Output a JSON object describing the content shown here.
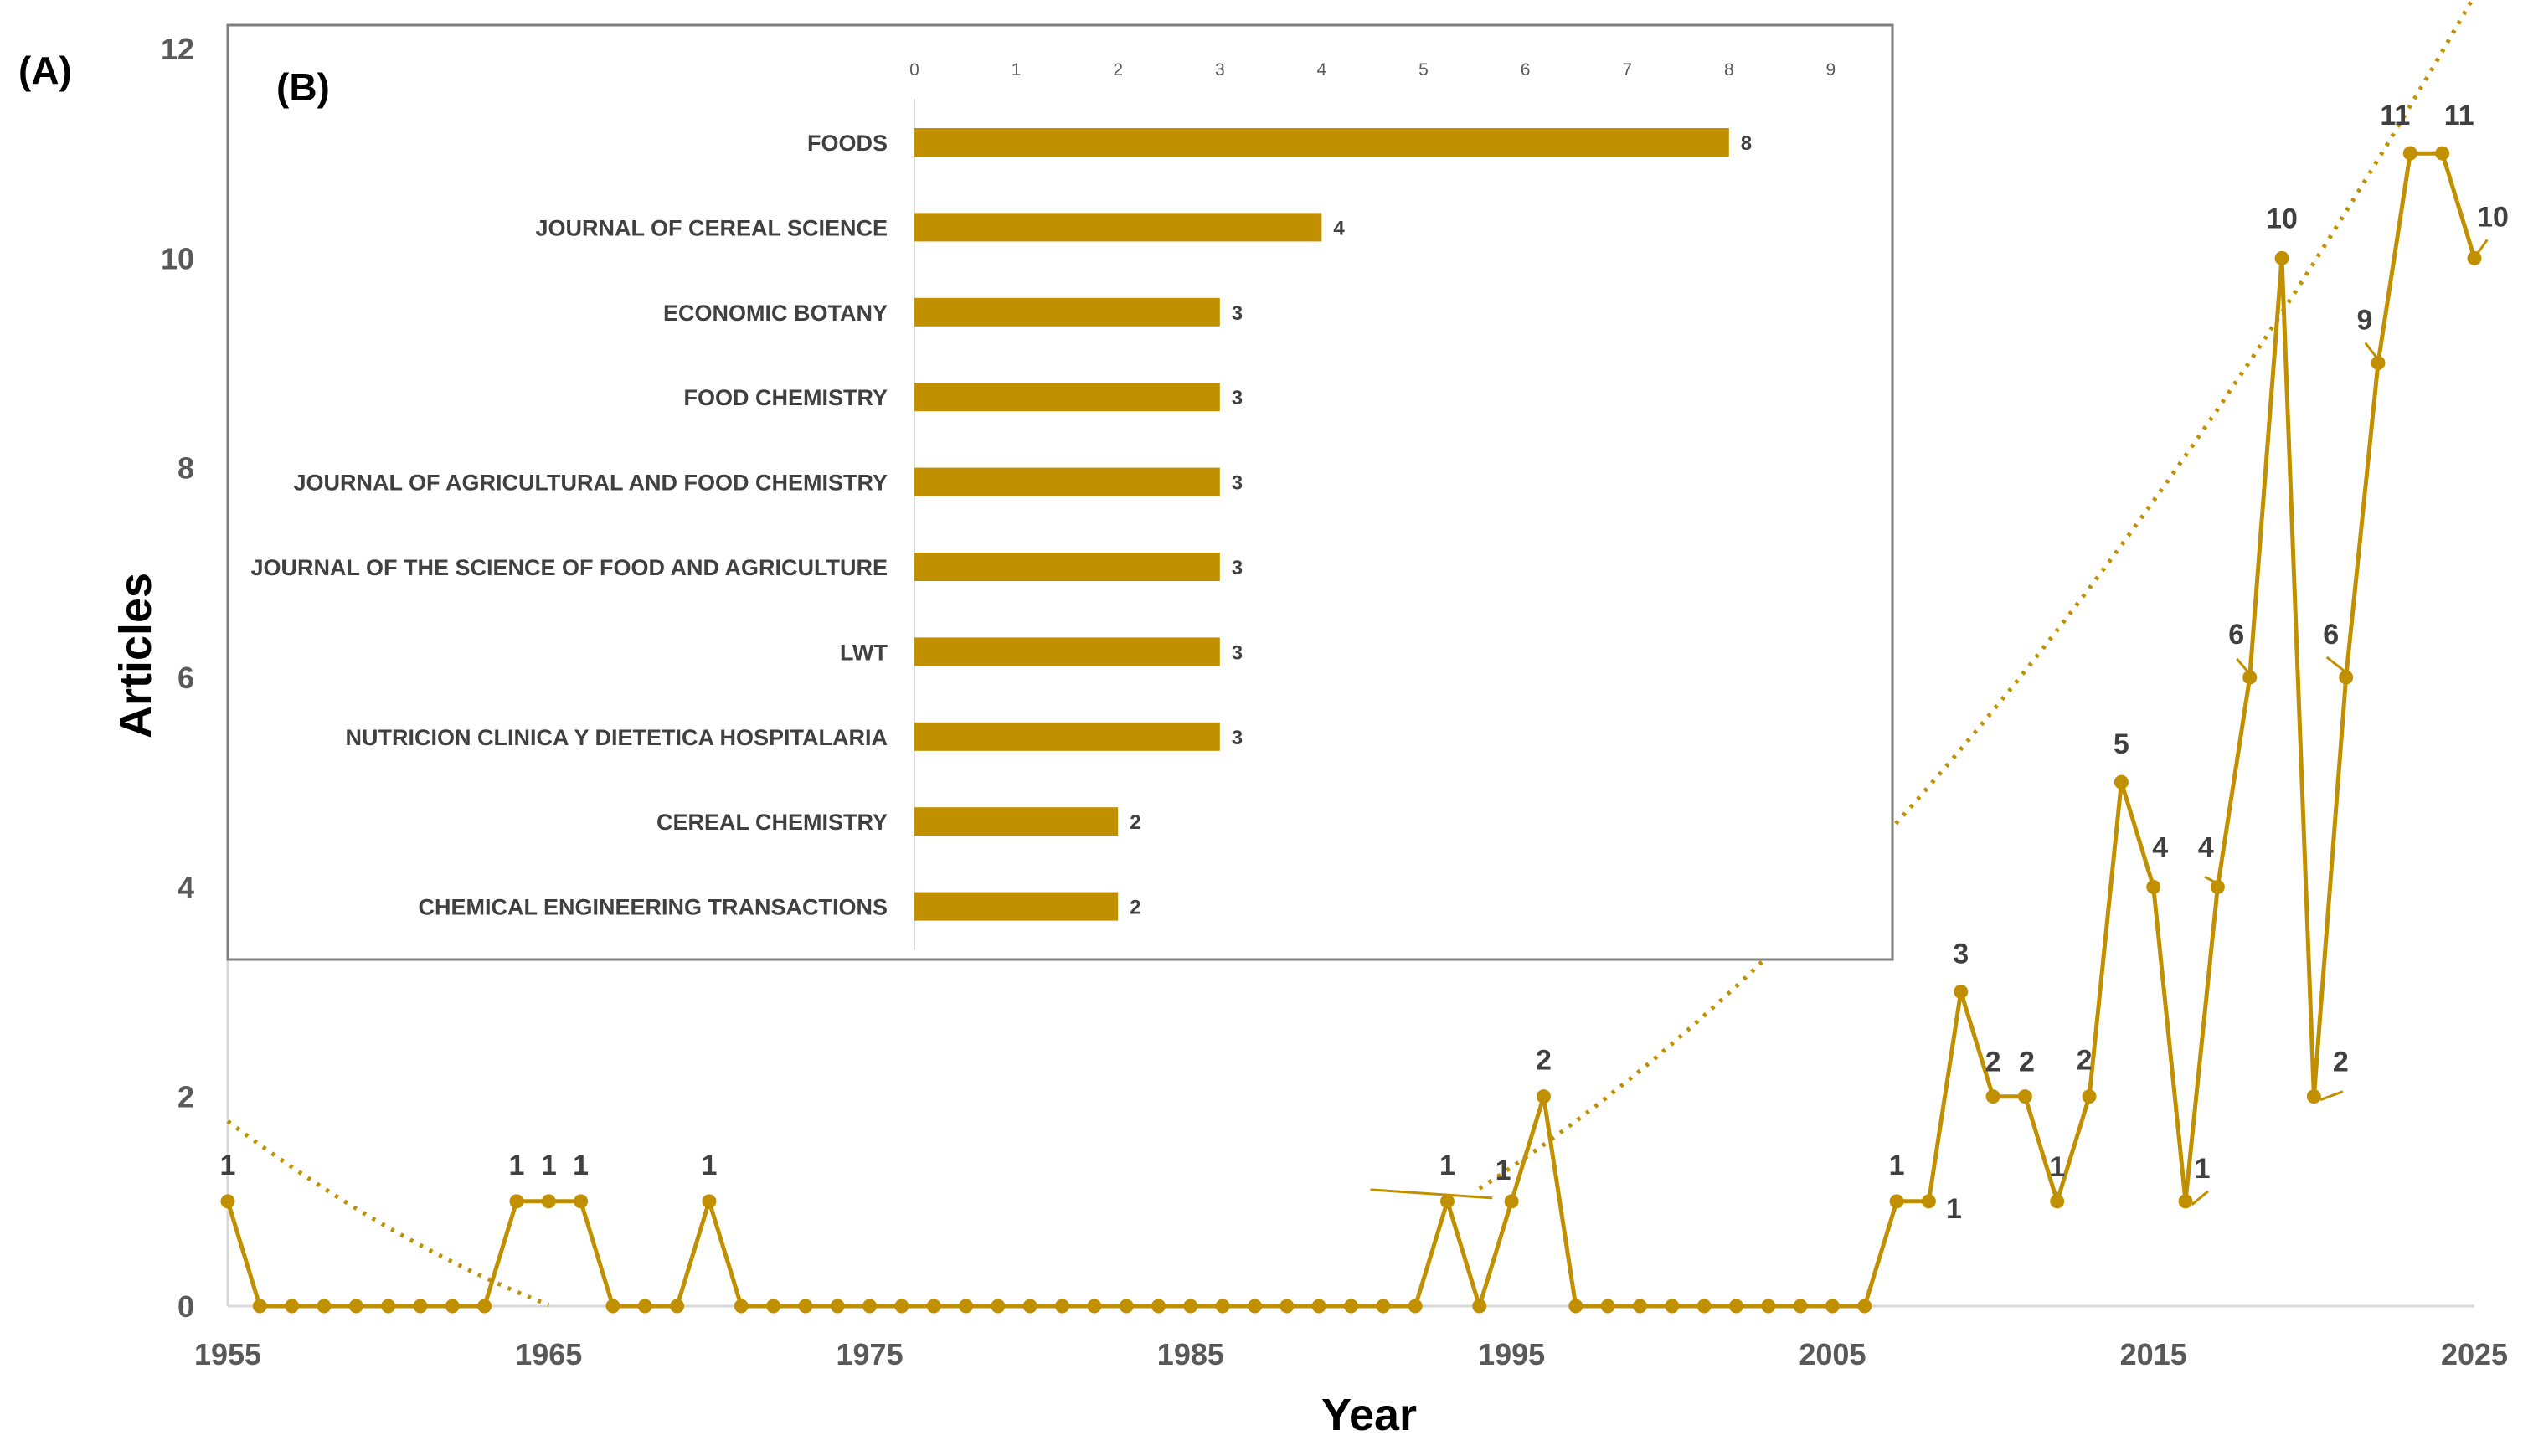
{
  "chart_data": [
    {
      "panel": "(A)",
      "type": "line",
      "xlabel": "Year",
      "ylabel": "Articles",
      "xlim": [
        1955,
        2025
      ],
      "ylim": [
        0,
        12
      ],
      "xticks": [
        1955,
        1965,
        1975,
        1985,
        1995,
        2005,
        2015,
        2025
      ],
      "yticks": [
        0,
        2,
        4,
        6,
        8,
        10,
        12
      ],
      "grid": false,
      "trendline": "polynomial (dotted)",
      "colors": {
        "series": "#c09000",
        "axis": "#d9d9d9"
      },
      "series": [
        {
          "x": [
            1955,
            1956,
            1957,
            1958,
            1959,
            1960,
            1961,
            1962,
            1963,
            1964,
            1965,
            1966,
            1967,
            1968,
            1969,
            1970,
            1971,
            1972,
            1973,
            1974,
            1975,
            1976,
            1977,
            1978,
            1979,
            1980,
            1981,
            1982,
            1983,
            1984,
            1985,
            1986,
            1987,
            1988,
            1989,
            1990,
            1991,
            1992,
            1993,
            1994,
            1995,
            1996,
            1997,
            1998,
            1999,
            2000,
            2001,
            2002,
            2003,
            2004,
            2005,
            2006,
            2007,
            2008,
            2009,
            2010,
            2011,
            2012,
            2013,
            2014,
            2015,
            2016,
            2017,
            2018,
            2019,
            2020,
            2021,
            2022,
            2023,
            2024,
            2025
          ],
          "values": [
            1,
            0,
            0,
            0,
            0,
            0,
            0,
            0,
            0,
            1,
            1,
            1,
            0,
            0,
            0,
            1,
            0,
            0,
            0,
            0,
            0,
            0,
            0,
            0,
            0,
            0,
            0,
            0,
            0,
            0,
            0,
            0,
            0,
            0,
            0,
            0,
            0,
            0,
            1,
            0,
            1,
            2,
            0,
            0,
            0,
            0,
            0,
            0,
            0,
            0,
            0,
            0,
            1,
            1,
            3,
            2,
            2,
            1,
            2,
            5,
            4,
            1,
            4,
            6,
            10,
            2,
            6,
            9,
            11,
            11,
            10
          ]
        }
      ],
      "labels": [
        {
          "x": 1955,
          "text": "1"
        },
        {
          "x": 1964,
          "text": "1"
        },
        {
          "x": 1965,
          "text": "1"
        },
        {
          "x": 1966,
          "text": "1"
        },
        {
          "x": 1970,
          "text": "1"
        },
        {
          "x": 1993,
          "text": "1"
        },
        {
          "x": 1995,
          "text": "1"
        },
        {
          "x": 1996,
          "text": "2"
        },
        {
          "x": 2007,
          "text": "1"
        },
        {
          "x": 2008,
          "text": "1"
        },
        {
          "x": 2009,
          "text": "3"
        },
        {
          "x": 2010,
          "text": "2"
        },
        {
          "x": 2011,
          "text": "2"
        },
        {
          "x": 2012,
          "text": "1"
        },
        {
          "x": 2013,
          "text": "2"
        },
        {
          "x": 2014,
          "text": "5"
        },
        {
          "x": 2015,
          "text": "4"
        },
        {
          "x": 2016,
          "text": "1"
        },
        {
          "x": 2017,
          "text": "4"
        },
        {
          "x": 2018,
          "text": "6"
        },
        {
          "x": 2019,
          "text": "10"
        },
        {
          "x": 2020,
          "text": "2"
        },
        {
          "x": 2021,
          "text": "6"
        },
        {
          "x": 2022,
          "text": "9"
        },
        {
          "x": 2023,
          "text": "11"
        },
        {
          "x": 2024,
          "text": "11"
        },
        {
          "x": 2025,
          "text": "10"
        }
      ]
    },
    {
      "panel": "(B)",
      "type": "bar",
      "orientation": "horizontal",
      "xlim": [
        0,
        9
      ],
      "xticks": [
        0,
        1,
        2,
        3,
        4,
        5,
        6,
        7,
        8,
        9
      ],
      "colors": {
        "bar": "#c09000"
      },
      "categories": [
        "FOODS",
        "JOURNAL OF CEREAL SCIENCE",
        "ECONOMIC BOTANY",
        "FOOD CHEMISTRY",
        "JOURNAL OF AGRICULTURAL AND FOOD CHEMISTRY",
        "JOURNAL OF THE SCIENCE OF FOOD AND AGRICULTURE",
        "LWT",
        "NUTRICION CLINICA Y DIETETICA HOSPITALARIA",
        "CEREAL CHEMISTRY",
        "CHEMICAL ENGINEERING TRANSACTIONS"
      ],
      "values": [
        8,
        4,
        3,
        3,
        3,
        3,
        3,
        3,
        2,
        2
      ]
    }
  ]
}
